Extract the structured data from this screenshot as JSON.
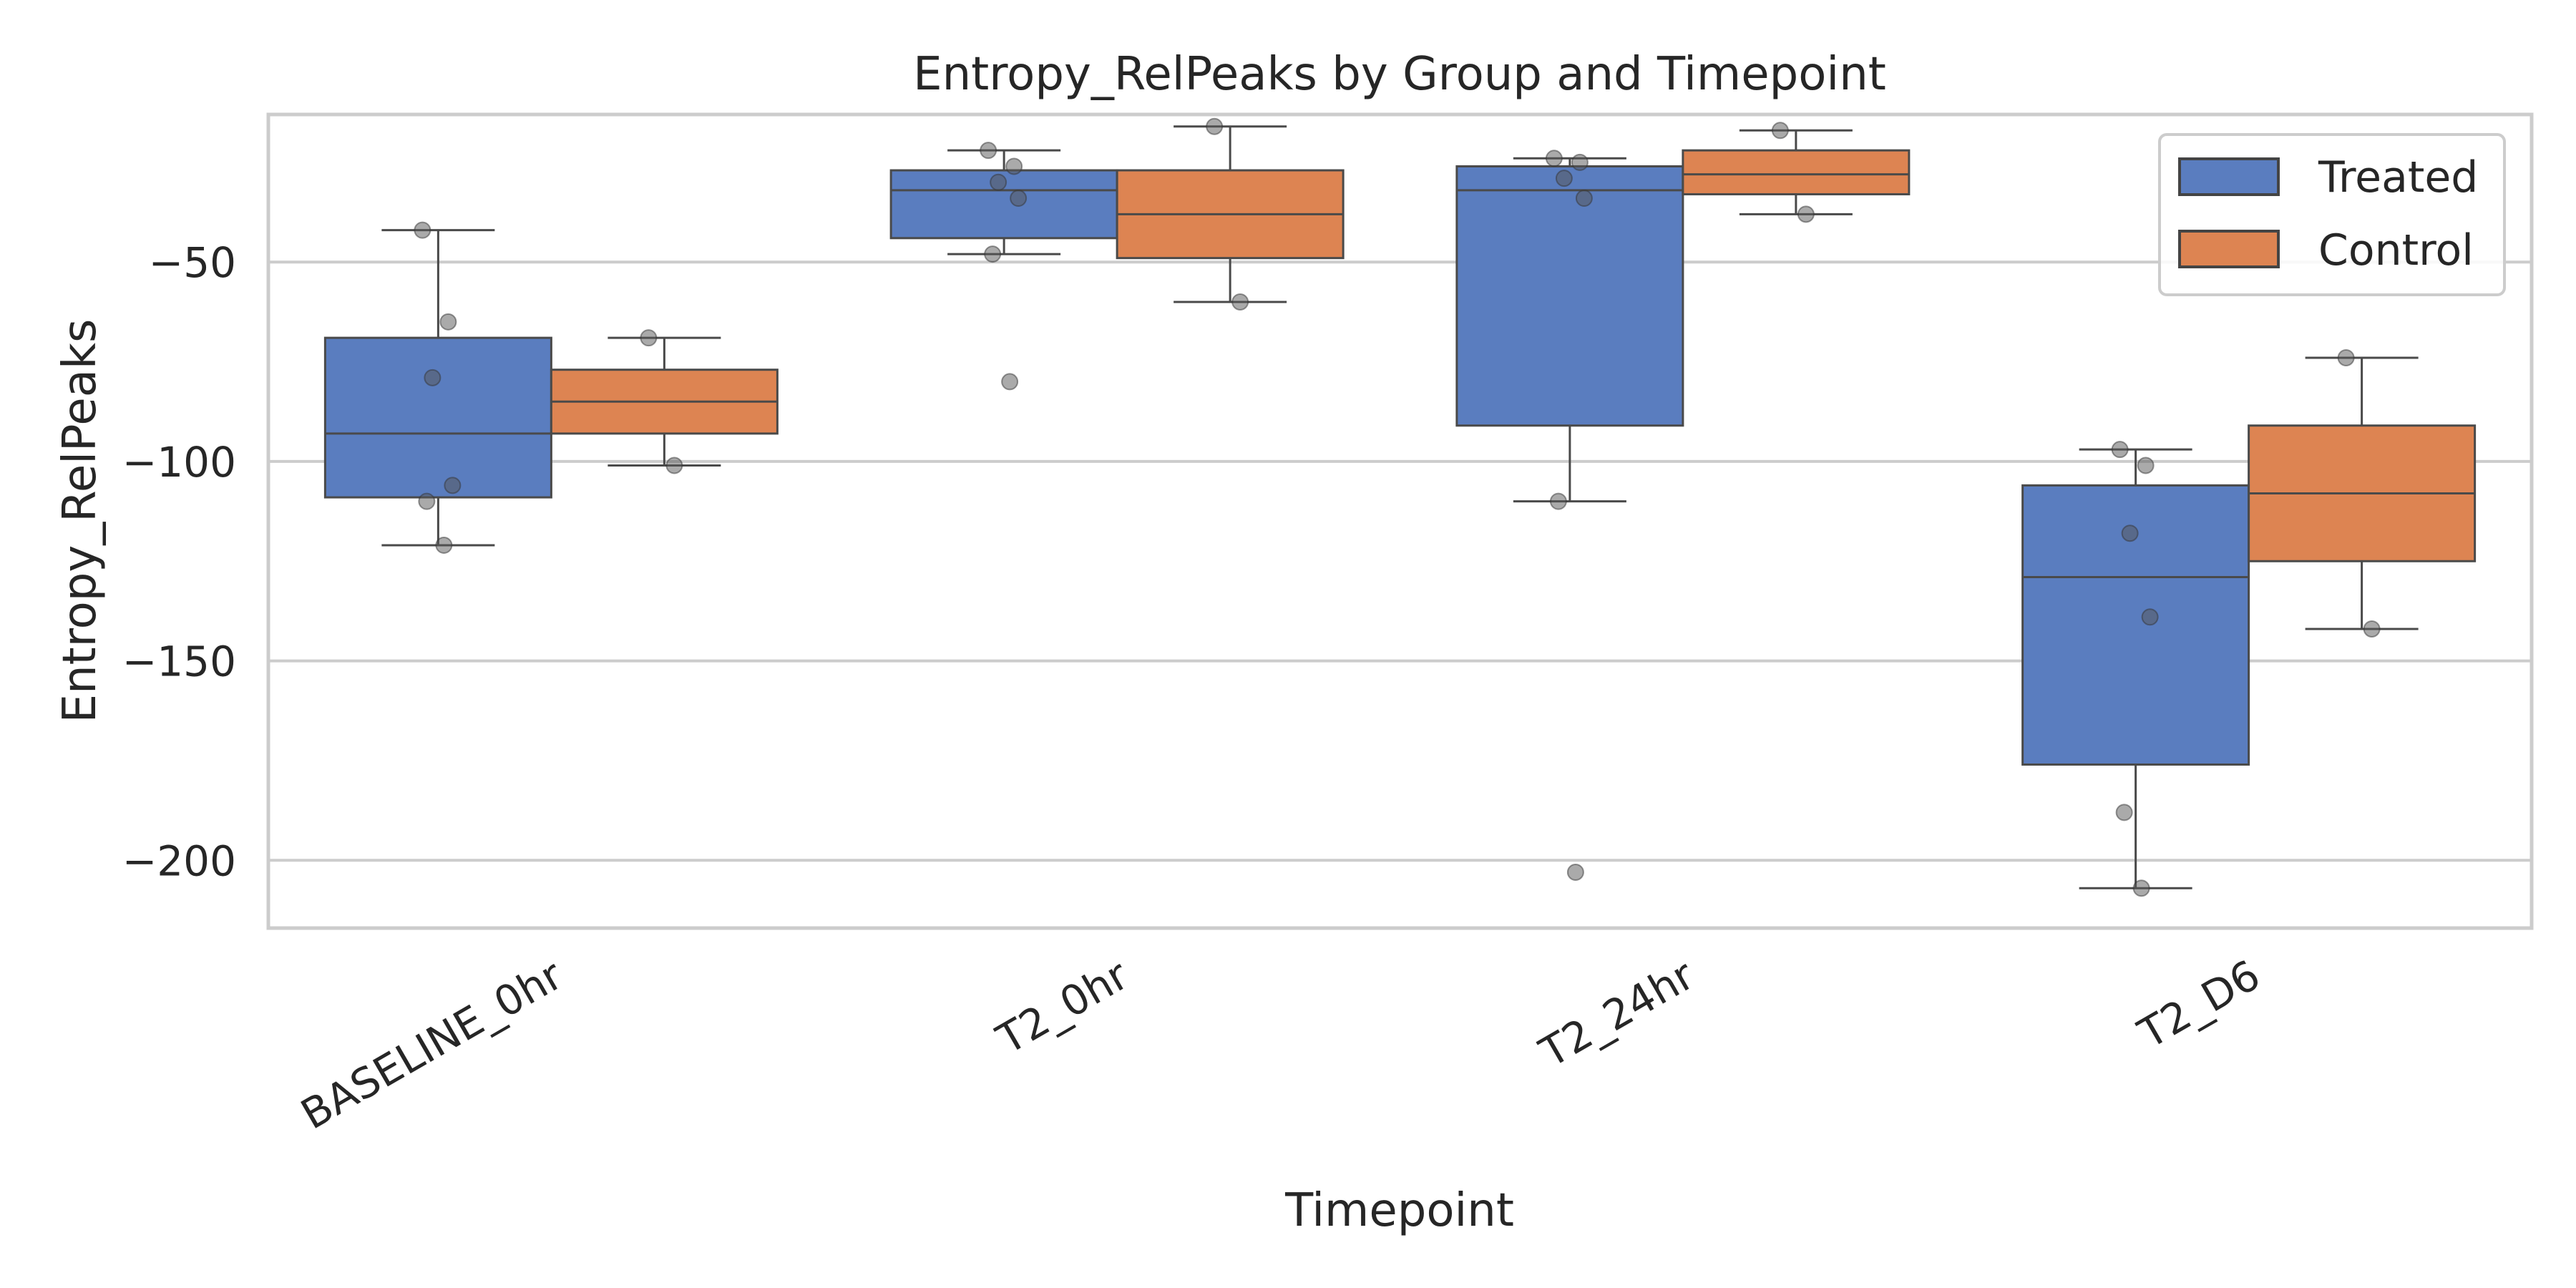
{
  "chart_data": {
    "type": "box",
    "title": "Entropy_RelPeaks by Group and Timepoint",
    "xlabel": "Timepoint",
    "ylabel": "Entropy_RelPeaks",
    "categories": [
      "BASELINE_0hr",
      "T2_0hr",
      "T2_24hr",
      "T2_D6"
    ],
    "ylim": [
      -217,
      -13
    ],
    "yticks": [
      -50,
      -100,
      -150,
      -200
    ],
    "ytick_labels": [
      "−50",
      "−100",
      "−150",
      "−200"
    ],
    "grid": true,
    "legend_position": "top-right",
    "series": [
      {
        "name": "Treated",
        "color": "#5a7dbf",
        "boxes": [
          {
            "whislo": -121,
            "q1": -109,
            "med": -93,
            "q3": -69,
            "whishi": -42
          },
          {
            "whislo": -48,
            "q1": -44,
            "med": -32,
            "q3": -27,
            "whishi": -22
          },
          {
            "whislo": -110,
            "q1": -91,
            "med": -32,
            "q3": -26,
            "whishi": -24
          },
          {
            "whislo": -207,
            "q1": -176,
            "med": -129,
            "q3": -106,
            "whishi": -97
          }
        ],
        "points": [
          [
            -42,
            -65,
            -79,
            -106,
            -110,
            -121
          ],
          [
            -22,
            -26,
            -30,
            -34,
            -48,
            -80
          ],
          [
            -24,
            -25,
            -29,
            -34,
            -110,
            -203
          ],
          [
            -97,
            -101,
            -118,
            -139,
            -188,
            -207
          ]
        ]
      },
      {
        "name": "Control",
        "color": "#dd8452",
        "boxes": [
          {
            "whislo": -101,
            "q1": -93,
            "med": -85,
            "q3": -77,
            "whishi": -69
          },
          {
            "whislo": -60,
            "q1": -49,
            "med": -38,
            "q3": -27,
            "whishi": -16
          },
          {
            "whislo": -38,
            "q1": -33,
            "med": -28,
            "q3": -22,
            "whishi": -17
          },
          {
            "whislo": -142,
            "q1": -125,
            "med": -108,
            "q3": -91,
            "whishi": -74
          }
        ],
        "points": [
          [
            -69,
            -101
          ],
          [
            -16,
            -60
          ],
          [
            -17,
            -38
          ],
          [
            -74,
            -142
          ]
        ]
      }
    ]
  }
}
